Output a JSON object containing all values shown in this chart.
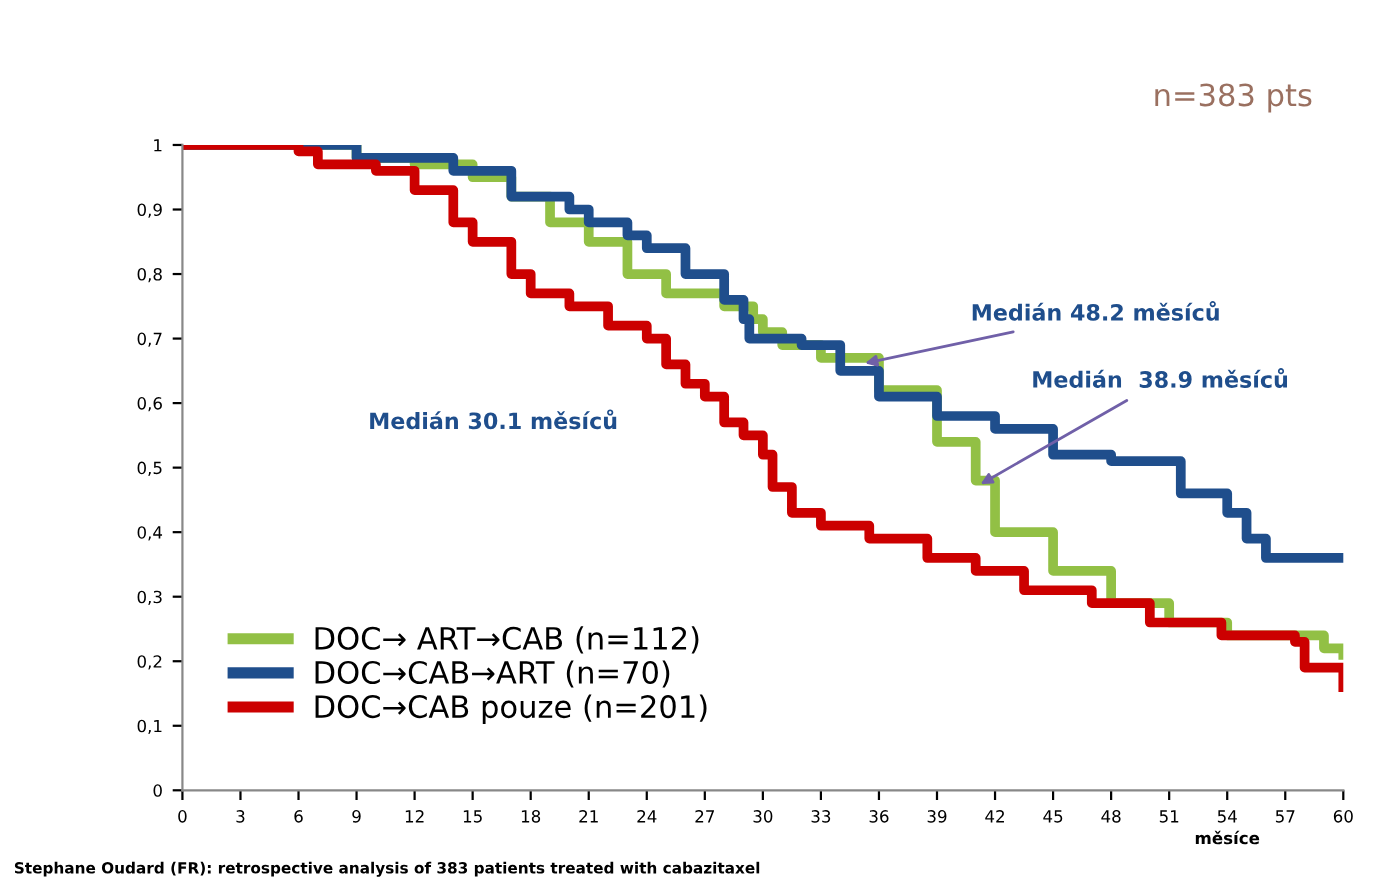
{
  "chart_data": {
    "type": "step",
    "xlabel": "měsíce",
    "xlim": [
      0,
      60
    ],
    "xticks": [
      0,
      3,
      6,
      9,
      12,
      15,
      18,
      21,
      24,
      27,
      30,
      33,
      36,
      39,
      42,
      45,
      48,
      51,
      54,
      57,
      60
    ],
    "ylim": [
      0,
      1
    ],
    "yticks": [
      {
        "value": 0,
        "label": "0"
      },
      {
        "value": 0.1,
        "label": "0,1"
      },
      {
        "value": 0.2,
        "label": "0,2"
      },
      {
        "value": 0.3,
        "label": "0,3"
      },
      {
        "value": 0.4,
        "label": "0,4"
      },
      {
        "value": 0.5,
        "label": "0,5"
      },
      {
        "value": 0.6,
        "label": "0,6"
      },
      {
        "value": 0.7,
        "label": "0,7"
      },
      {
        "value": 0.8,
        "label": "0,8"
      },
      {
        "value": 0.9,
        "label": "0,9"
      },
      {
        "value": 1,
        "label": "1"
      }
    ],
    "grid": false,
    "legend": "bottom left",
    "line_style": "solid",
    "marker": "none",
    "series": [
      {
        "name": "DOC→ ART→CAB (n=112)",
        "color": "#92c045",
        "x": [
          0,
          9,
          12,
          15,
          17,
          19,
          21,
          23,
          25,
          26,
          28,
          29.5,
          30,
          31,
          33,
          36,
          39,
          41,
          42,
          45,
          48,
          51,
          54,
          57,
          59,
          60
        ],
        "values": [
          1,
          0.98,
          0.97,
          0.95,
          0.92,
          0.88,
          0.85,
          0.8,
          0.77,
          0.77,
          0.75,
          0.73,
          0.71,
          0.69,
          0.67,
          0.62,
          0.54,
          0.48,
          0.4,
          0.34,
          0.29,
          0.26,
          0.24,
          0.24,
          0.22,
          0.21
        ]
      },
      {
        "name": "DOC→CAB→ART (n=70)",
        "color": "#1f4e8c",
        "x": [
          0,
          9,
          14,
          17,
          20,
          21,
          23,
          24,
          26,
          28,
          29,
          29.3,
          32,
          34,
          36,
          39,
          42,
          45,
          48,
          51.6,
          54,
          55,
          56,
          60
        ],
        "values": [
          1,
          0.98,
          0.96,
          0.92,
          0.9,
          0.88,
          0.86,
          0.84,
          0.8,
          0.76,
          0.73,
          0.7,
          0.69,
          0.65,
          0.61,
          0.58,
          0.56,
          0.52,
          0.51,
          0.46,
          0.43,
          0.39,
          0.36,
          0.36
        ]
      },
      {
        "name": "DOC→CAB pouze (n=201)",
        "color": "#cc0000",
        "x": [
          0,
          6,
          7,
          10,
          12,
          14,
          15,
          17,
          18,
          20,
          22,
          24,
          25,
          26,
          27,
          28,
          29,
          30,
          30.5,
          31.5,
          33,
          35.5,
          38.5,
          41,
          43.5,
          47,
          50,
          53.7,
          57.5,
          58,
          60
        ],
        "values": [
          1,
          0.99,
          0.97,
          0.96,
          0.93,
          0.88,
          0.85,
          0.8,
          0.77,
          0.75,
          0.72,
          0.7,
          0.66,
          0.63,
          0.61,
          0.57,
          0.55,
          0.52,
          0.47,
          0.43,
          0.41,
          0.39,
          0.36,
          0.34,
          0.31,
          0.29,
          0.26,
          0.24,
          0.23,
          0.19,
          0.16
        ]
      }
    ],
    "annotations": [
      {
        "text": "Medián 48.2 měsíců",
        "x": 35,
        "y": 0.66
      },
      {
        "text": "Medián  38.9 měsíců",
        "x": 41,
        "y": 0.47
      },
      "Medián 30.1 měsíců",
      "n=383 pts",
      "Stephane Oudard (FR): retrospective analysis of 383 patients treated with cabazitaxel"
    ]
  }
}
